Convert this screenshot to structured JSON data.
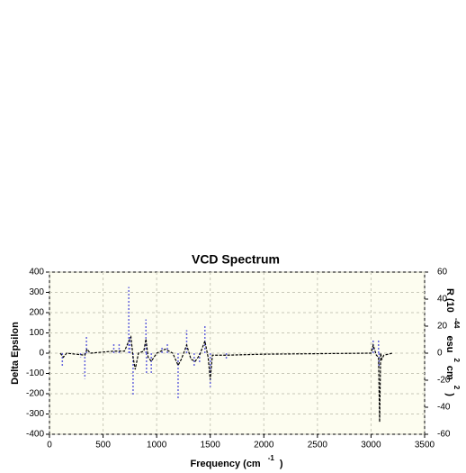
{
  "chart_data": {
    "type": "line",
    "title": "VCD Spectrum",
    "xlabel": [
      "Frequency (cm",
      "-1",
      ")"
    ],
    "ylabel": "Delta Epsilon",
    "y2label": [
      "R (10",
      "-44",
      "esu",
      "2",
      "cm",
      "2",
      ")"
    ],
    "xlim": [
      0,
      3500
    ],
    "xticks": [
      0,
      500,
      1000,
      1500,
      2000,
      2500,
      3000,
      3500
    ],
    "ylim": [
      -400,
      400
    ],
    "yticks": [
      -400,
      -300,
      -200,
      -100,
      0,
      100,
      200,
      300,
      400
    ],
    "y2lim": [
      -60,
      60
    ],
    "y2ticks": [
      -60,
      -40,
      -20,
      0,
      20,
      40,
      60
    ],
    "grid": true,
    "background": "#fdfdf0",
    "series": [
      {
        "kind": "line",
        "color": "#000000",
        "axis": "y",
        "x": [
          100,
          130,
          160,
          330,
          350,
          380,
          600,
          700,
          740,
          760,
          780,
          800,
          830,
          880,
          900,
          920,
          950,
          1000,
          1080,
          1150,
          1200,
          1230,
          1280,
          1320,
          1360,
          1400,
          1450,
          1480,
          1500,
          1520,
          1600,
          1650,
          2000,
          3000,
          3020,
          3050,
          3070,
          3080,
          3090,
          3100,
          3120,
          3200
        ],
        "values": [
          0,
          -20,
          0,
          -10,
          20,
          0,
          10,
          10,
          60,
          80,
          -20,
          -80,
          0,
          10,
          70,
          -20,
          -40,
          0,
          20,
          0,
          -60,
          -30,
          40,
          -30,
          -40,
          -10,
          60,
          -20,
          -130,
          -10,
          -10,
          -10,
          -5,
          0,
          40,
          -10,
          -20,
          -340,
          0,
          -30,
          -10,
          0
        ]
      },
      {
        "kind": "sticks",
        "color": "#6666dd",
        "axis": "y2",
        "x": [
          120,
          290,
          330,
          345,
          600,
          650,
          740,
          750,
          780,
          900,
          905,
          950,
          1050,
          1100,
          1200,
          1280,
          1350,
          1400,
          1450,
          1500,
          1650,
          3020,
          3070,
          3075
        ],
        "values": [
          -10,
          -3,
          -19,
          13,
          8,
          8,
          49,
          13,
          -31,
          25,
          -15,
          -15,
          5,
          8,
          -34,
          17,
          -10,
          -8,
          21,
          -25,
          -4,
          10,
          10,
          -10
        ]
      }
    ]
  }
}
